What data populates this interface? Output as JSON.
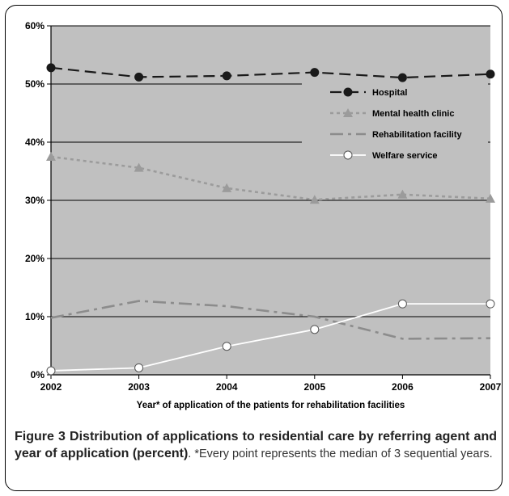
{
  "chart_data": {
    "type": "line",
    "categories": [
      "2002",
      "2003",
      "2004",
      "2005",
      "2006",
      "2007"
    ],
    "xlabel": "Year* of application of the patients for rehabilitation facilities",
    "ylabel": "",
    "ylim": [
      0,
      60
    ],
    "yticks": [
      "0%",
      "10%",
      "20%",
      "30%",
      "40%",
      "50%",
      "60%"
    ],
    "grid": true,
    "legend_position": "right",
    "series": [
      {
        "name": "Hospital",
        "values": [
          52.8,
          51.2,
          51.4,
          52.0,
          51.1,
          51.7
        ],
        "color": "#1a1a1a",
        "style": "dashed",
        "marker": "circle"
      },
      {
        "name": "Mental health clinic",
        "values": [
          37.5,
          35.6,
          32.1,
          30.1,
          31.0,
          30.3
        ],
        "color": "#9b9b9b",
        "style": "dotted",
        "marker": "triangle"
      },
      {
        "name": "Rehabilitation facility",
        "values": [
          9.8,
          12.7,
          11.8,
          10.0,
          6.2,
          6.3
        ],
        "color": "#8c8c8c",
        "style": "dashdot",
        "marker": "none"
      },
      {
        "name": "Welfare service",
        "values": [
          0.7,
          1.2,
          4.9,
          7.8,
          12.2,
          12.2
        ],
        "color": "#ffffff",
        "style": "solid",
        "marker": "open-circle"
      }
    ]
  },
  "caption": {
    "label": "Figure 3",
    "title": "Distribution of applications to residential care by referring agent and year of application (percent)",
    "note": ". *Every point represents the median of 3 sequential years."
  },
  "colors": {
    "plot_background": "#c0c0c0",
    "gridline": "#000000"
  }
}
